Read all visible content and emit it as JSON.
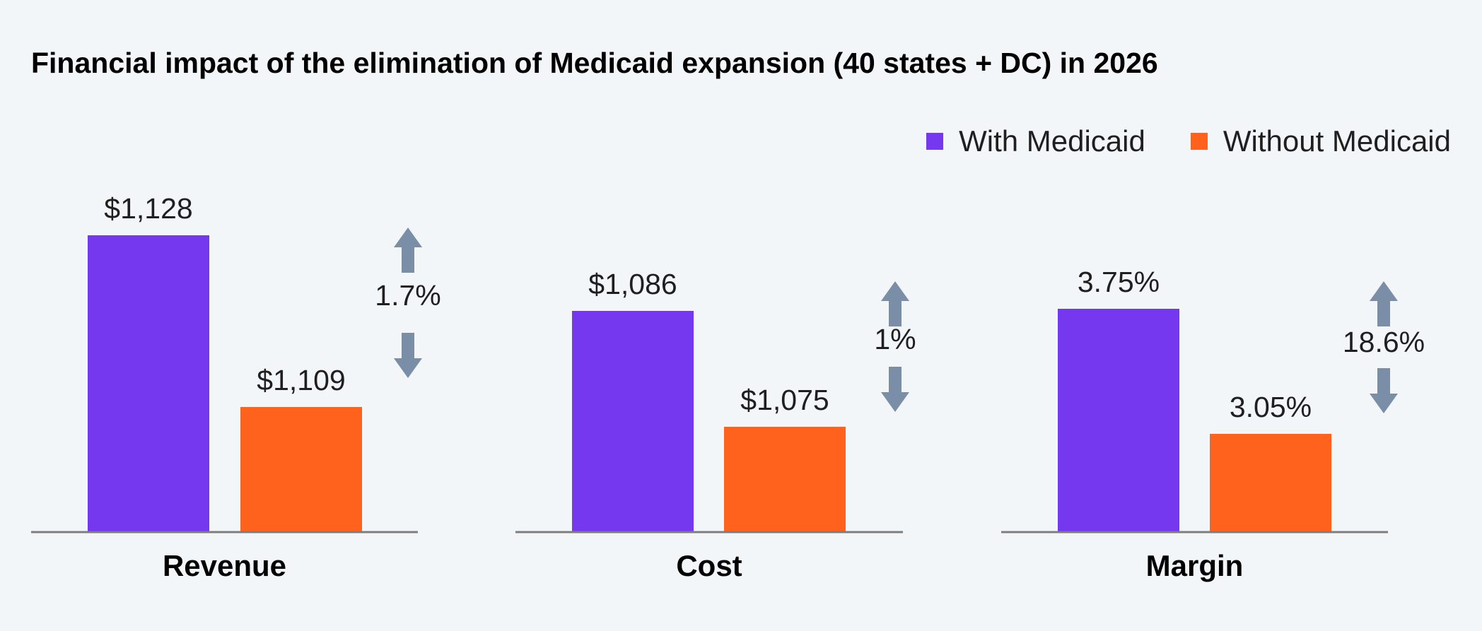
{
  "title": "Financial impact of the elimination of Medicaid expansion (40 states + DC) in 2026",
  "colors": {
    "with": "#7638ee",
    "without": "#fe621d",
    "arrow": "#7a8ea8",
    "axis": "#7d7d7d",
    "background": "#f2f6f9"
  },
  "legend": [
    {
      "label": "With Medicaid",
      "color": "#7638ee"
    },
    {
      "label": "Without Medicaid",
      "color": "#fe621d"
    }
  ],
  "chart_data": [
    {
      "type": "bar",
      "category": "Revenue",
      "series": [
        {
          "name": "With Medicaid",
          "value": 1128,
          "label": "$1,128"
        },
        {
          "name": "Without Medicaid",
          "value": 1109,
          "label": "$1,109"
        }
      ],
      "change_label": "1.7%"
    },
    {
      "type": "bar",
      "category": "Cost",
      "series": [
        {
          "name": "With Medicaid",
          "value": 1086,
          "label": "$1,086"
        },
        {
          "name": "Without Medicaid",
          "value": 1075,
          "label": "$1,075"
        }
      ],
      "change_label": "1%"
    },
    {
      "type": "bar",
      "category": "Margin",
      "series": [
        {
          "name": "With Medicaid",
          "value": 3.75,
          "label": "3.75%"
        },
        {
          "name": "Without Medicaid",
          "value": 3.05,
          "label": "3.05%"
        }
      ],
      "change_label": "18.6%"
    }
  ]
}
